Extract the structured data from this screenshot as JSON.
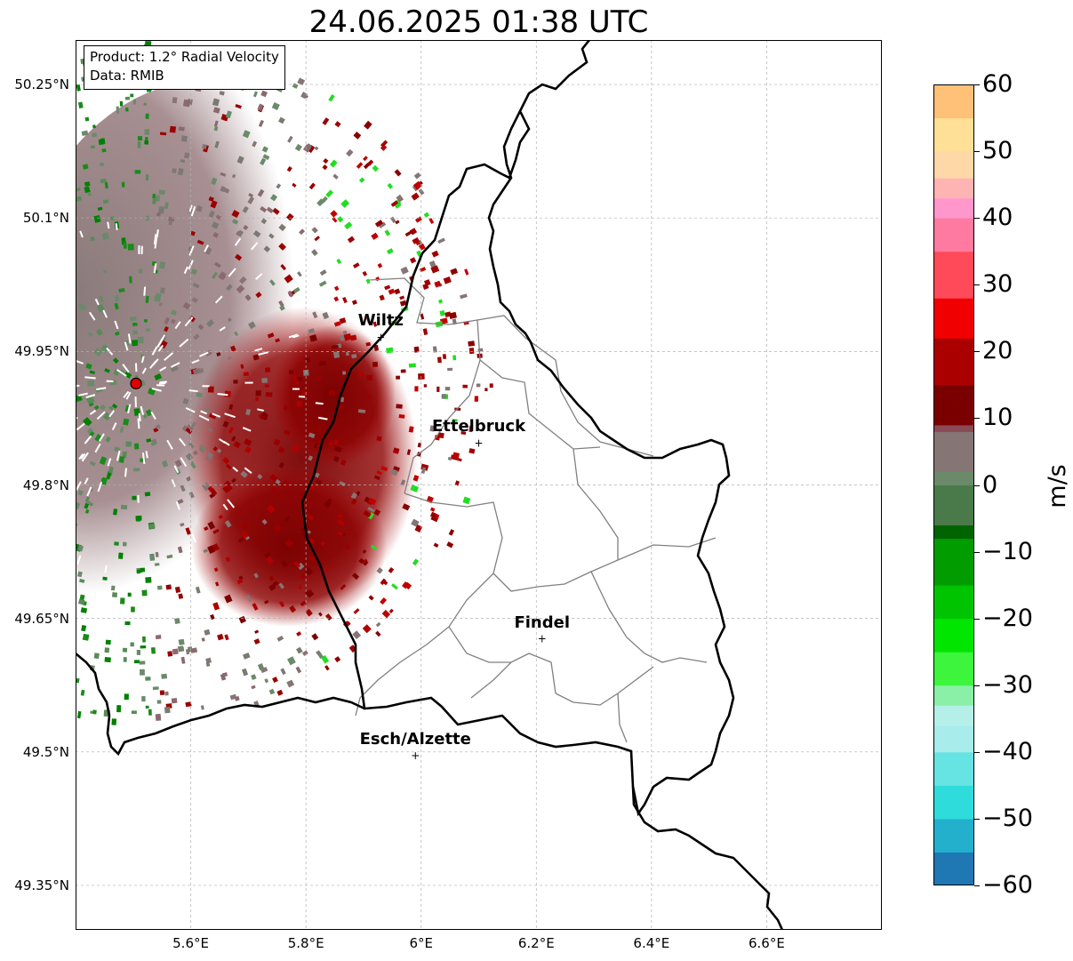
{
  "title": "24.06.2025 01:38 UTC",
  "info": {
    "product": "Product: 1.2° Radial Velocity",
    "data": "Data: RMIB"
  },
  "map": {
    "lon_range": [
      5.4,
      6.8
    ],
    "lat_range": [
      49.3,
      50.3
    ],
    "lat_ticks": [
      {
        "value": 50.25,
        "label": "50.25°N"
      },
      {
        "value": 50.1,
        "label": "50.1°N"
      },
      {
        "value": 49.95,
        "label": "49.95°N"
      },
      {
        "value": 49.8,
        "label": "49.8°N"
      },
      {
        "value": 49.65,
        "label": "49.65°N"
      },
      {
        "value": 49.5,
        "label": "49.5°N"
      },
      {
        "value": 49.35,
        "label": "49.35°N"
      }
    ],
    "lon_ticks": [
      {
        "value": 5.6,
        "label": "5.6°E"
      },
      {
        "value": 5.8,
        "label": "5.8°E"
      },
      {
        "value": 6.0,
        "label": "6°E"
      },
      {
        "value": 6.2,
        "label": "6.2°E"
      },
      {
        "value": 6.4,
        "label": "6.4°E"
      },
      {
        "value": 6.6,
        "label": "6.6°E"
      }
    ],
    "grid": true,
    "radar_site": {
      "lon": 5.505,
      "lat": 49.914,
      "color": "#e00000"
    },
    "cities": [
      {
        "name": "Wiltz",
        "lon": 5.93,
        "lat": 49.966
      },
      {
        "name": "Ettelbruck",
        "lon": 6.1,
        "lat": 49.847
      },
      {
        "name": "Findel",
        "lon": 6.21,
        "lat": 49.627
      },
      {
        "name": "Esch/Alzette",
        "lon": 5.99,
        "lat": 49.496
      }
    ]
  },
  "colorbar": {
    "label": "m/s",
    "min": -60,
    "max": 60,
    "ticks": [
      {
        "value": 60,
        "label": "60"
      },
      {
        "value": 50,
        "label": "50"
      },
      {
        "value": 40,
        "label": "40"
      },
      {
        "value": 30,
        "label": "30"
      },
      {
        "value": 20,
        "label": "20"
      },
      {
        "value": 10,
        "label": "10"
      },
      {
        "value": 0,
        "label": "0"
      },
      {
        "value": -10,
        "label": "−10"
      },
      {
        "value": -20,
        "label": "−20"
      },
      {
        "value": -30,
        "label": "−30"
      },
      {
        "value": -40,
        "label": "−40"
      },
      {
        "value": -50,
        "label": "−50"
      },
      {
        "value": -60,
        "label": "−60"
      }
    ],
    "stops": [
      {
        "value": -60,
        "color": "#1f77b4"
      },
      {
        "value": -55,
        "color": "#22b0cc"
      },
      {
        "value": -50,
        "color": "#2fdcdc"
      },
      {
        "value": -45,
        "color": "#66e4e4"
      },
      {
        "value": -40,
        "color": "#a8ecec"
      },
      {
        "value": -36,
        "color": "#b5f0e8"
      },
      {
        "value": -33,
        "color": "#8af0a8"
      },
      {
        "value": -30,
        "color": "#3cf53c"
      },
      {
        "value": -25,
        "color": "#00e600"
      },
      {
        "value": -20,
        "color": "#00c400"
      },
      {
        "value": -15,
        "color": "#009c00"
      },
      {
        "value": -8,
        "color": "#006400"
      },
      {
        "value": -6,
        "color": "#4a7a4a"
      },
      {
        "value": 0,
        "color": "#6a8a6a"
      },
      {
        "value": 2,
        "color": "#857575"
      },
      {
        "value": 8,
        "color": "#8a4a55"
      },
      {
        "value": 9,
        "color": "#7a0000"
      },
      {
        "value": 15,
        "color": "#aa0000"
      },
      {
        "value": 22,
        "color": "#f00000"
      },
      {
        "value": 28,
        "color": "#ff4a5a"
      },
      {
        "value": 35,
        "color": "#ff7aa0"
      },
      {
        "value": 40,
        "color": "#ff96cc"
      },
      {
        "value": 43,
        "color": "#ffb4b4"
      },
      {
        "value": 46,
        "color": "#ffd8a8"
      },
      {
        "value": 50,
        "color": "#ffe096"
      },
      {
        "value": 55,
        "color": "#ffc078"
      },
      {
        "value": 60,
        "color": "#ff9a4a"
      }
    ]
  }
}
